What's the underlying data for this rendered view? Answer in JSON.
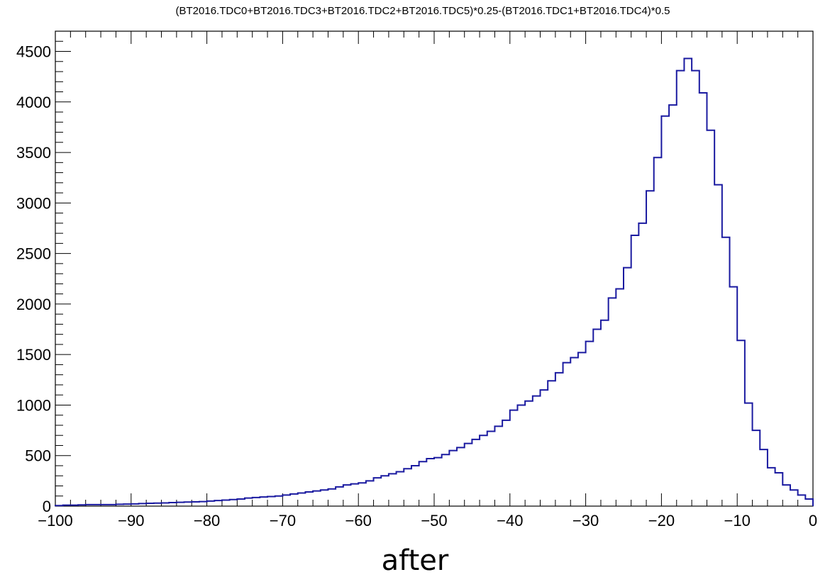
{
  "chart_data": {
    "type": "histogram",
    "title": "(BT2016.TDC0+BT2016.TDC3+BT2016.TDC2+BT2016.TDC5)*0.25-(BT2016.TDC1+BT2016.TDC4)*0.5",
    "xlabel": "",
    "ylabel": "",
    "xlim": [
      -100,
      0
    ],
    "ylim": [
      0,
      4700
    ],
    "bin_width": 1,
    "x_ticks": [
      -100,
      -90,
      -80,
      -70,
      -60,
      -50,
      -40,
      -30,
      -20,
      -10,
      0
    ],
    "x_tick_labels": [
      "−100",
      "−90",
      "−80",
      "−70",
      "−60",
      "−50",
      "−40",
      "−30",
      "−20",
      "−10",
      "0"
    ],
    "y_ticks": [
      0,
      500,
      1000,
      1500,
      2000,
      2500,
      3000,
      3500,
      4000,
      4500
    ],
    "y_tick_labels": [
      "0",
      "500",
      "1000",
      "1500",
      "2000",
      "2500",
      "3000",
      "3500",
      "4000",
      "4500"
    ],
    "line_color": "#1a1aa0",
    "grid": false,
    "bin_edges_start": -100,
    "counts": [
      5,
      10,
      10,
      12,
      15,
      15,
      15,
      15,
      18,
      20,
      22,
      25,
      28,
      30,
      32,
      35,
      38,
      40,
      42,
      45,
      50,
      55,
      60,
      65,
      70,
      80,
      85,
      90,
      95,
      100,
      110,
      120,
      130,
      140,
      150,
      160,
      170,
      190,
      210,
      220,
      230,
      250,
      280,
      300,
      320,
      340,
      370,
      400,
      440,
      470,
      480,
      510,
      550,
      580,
      620,
      660,
      700,
      740,
      790,
      850,
      950,
      1000,
      1040,
      1090,
      1150,
      1240,
      1320,
      1420,
      1470,
      1520,
      1630,
      1750,
      1840,
      2060,
      2150,
      2360,
      2680,
      2800,
      3120,
      3450,
      3860,
      3970,
      4310,
      4430,
      4310,
      4090,
      3720,
      3180,
      2660,
      2170,
      1640,
      1020,
      750,
      560,
      380,
      330,
      210,
      160,
      110,
      70
    ]
  },
  "caption": "after"
}
